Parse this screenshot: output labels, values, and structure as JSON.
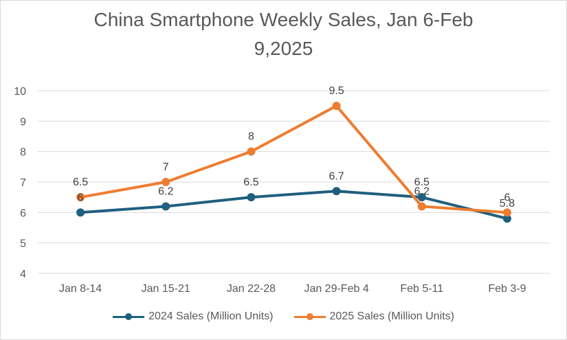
{
  "chart_data": {
    "type": "line",
    "title_lines": [
      "China Smartphone Weekly Sales, Jan 6-Feb",
      "9,2025"
    ],
    "categories": [
      "Jan 8-14",
      "Jan 15-21",
      "Jan 22-28",
      "Jan 29-Feb 4",
      "Feb 5-11",
      "Feb 3-9"
    ],
    "series": [
      {
        "name": "2024 Sales (Million Units)",
        "color": "#1f5f7f",
        "values": [
          6,
          6.2,
          6.5,
          6.7,
          6.5,
          5.8
        ],
        "labels": [
          "6",
          "6.2",
          "6.5",
          "6.7",
          "6.5",
          "5.8"
        ]
      },
      {
        "name": "2025 Sales (Million Units)",
        "color": "#ed7d31",
        "values": [
          6.5,
          7,
          8,
          9.5,
          6.2,
          6
        ],
        "labels": [
          "6.5",
          "7",
          "8",
          "9.5",
          "6.2",
          "6"
        ]
      }
    ],
    "ylim": [
      4,
      10
    ],
    "yticks": [
      "4",
      "5",
      "6",
      "7",
      "8",
      "9",
      "10"
    ],
    "grid": true,
    "legend": "bottom"
  }
}
